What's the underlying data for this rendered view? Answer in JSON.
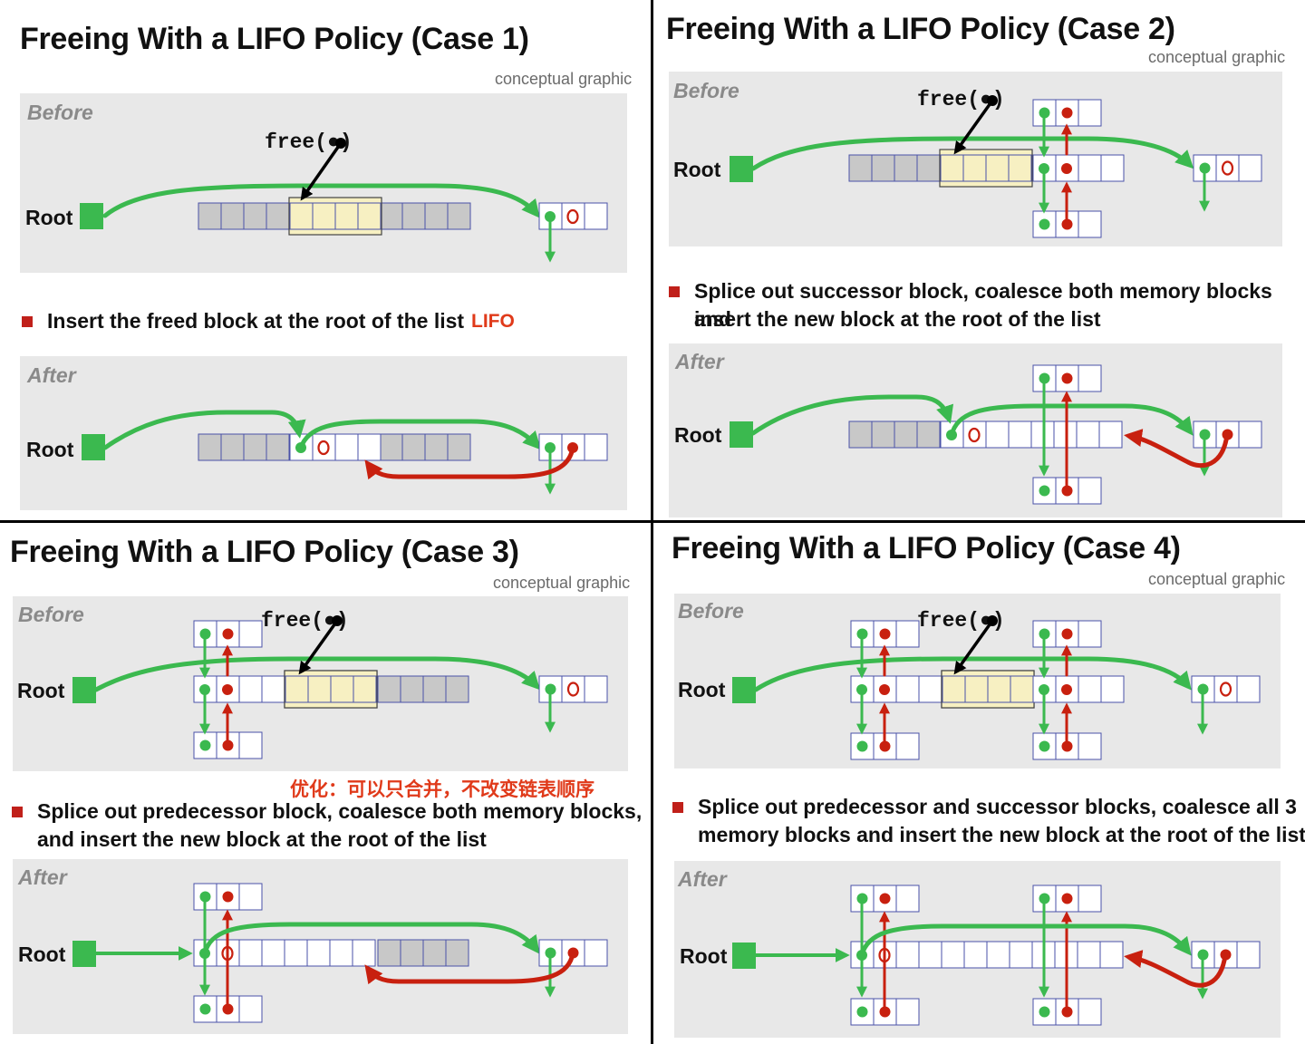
{
  "colors": {
    "green": "#3bb94f",
    "red": "#c8200f",
    "gray_cell": "#c8c8c8",
    "highlight": "#f7f0c2",
    "panel": "#e8e8e8",
    "cell_border": "#4a52a8"
  },
  "common": {
    "subtitle": "conceptual graphic",
    "before": "Before",
    "after": "After",
    "root": "Root",
    "free_call": "free(●)"
  },
  "case1": {
    "title": "Freeing With a LIFO Policy (Case 1)",
    "bullet": "Insert the freed block at the root of the list",
    "tag": "LIFO"
  },
  "case2": {
    "title": "Freeing With a LIFO Policy (Case 2)",
    "bullet_line1": "Splice out successor block, coalesce both memory blocks and",
    "bullet_line2": "insert the new block at the root of the list"
  },
  "case3": {
    "title": "Freeing With a LIFO Policy (Case 3)",
    "note": "优化：可以只合并，不改变链表顺序",
    "bullet_line1": "Splice out predecessor block, coalesce both memory blocks,",
    "bullet_line2": "and insert the new block at the root of the list"
  },
  "case4": {
    "title": "Freeing With a LIFO Policy (Case 4)",
    "bullet_line1": "Splice out predecessor and successor blocks, coalesce all 3",
    "bullet_line2": "memory blocks and insert the new block at the root of the list"
  }
}
